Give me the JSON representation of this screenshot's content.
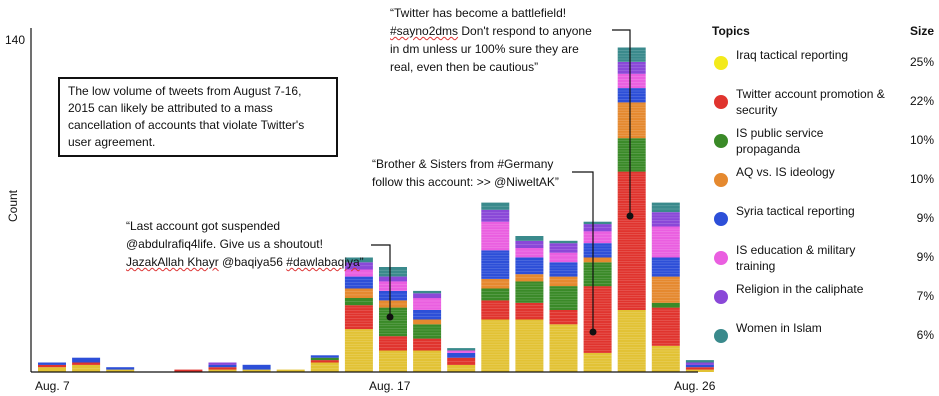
{
  "chart_data": {
    "type": "bar",
    "stacked": true,
    "ylabel": "Count",
    "ymax_tick": 140,
    "ylim": [
      0,
      140
    ],
    "x_tick_labels": [
      "Aug. 7",
      "Aug. 17",
      "Aug. 26"
    ],
    "series": [
      {
        "name": "Iraq tactical reporting",
        "color": "#e2c234",
        "values": [
          2,
          3,
          1,
          0,
          0,
          1,
          1,
          1,
          4,
          18,
          9,
          9,
          3,
          22,
          22,
          20,
          8,
          26,
          11,
          1
        ]
      },
      {
        "name": "Twitter account promotion & security",
        "color": "#e0342e",
        "values": [
          1,
          1,
          0,
          0,
          1,
          1,
          0,
          0,
          1,
          10,
          6,
          5,
          3,
          8,
          7,
          6,
          28,
          58,
          16,
          1
        ]
      },
      {
        "name": "IS public service propaganda",
        "color": "#3a8a28",
        "values": [
          0,
          0,
          0,
          0,
          0,
          0,
          0,
          0,
          1,
          3,
          12,
          6,
          0,
          5,
          9,
          10,
          10,
          14,
          2,
          0
        ]
      },
      {
        "name": "AQ vs. IS ideology",
        "color": "#e5892f",
        "values": [
          0,
          0,
          0,
          0,
          0,
          0,
          0,
          0,
          0,
          4,
          3,
          2,
          0,
          4,
          3,
          4,
          2,
          15,
          11,
          0
        ]
      },
      {
        "name": "Syria tactical reporting",
        "color": "#2d4fd8",
        "values": [
          1,
          2,
          1,
          0,
          0,
          1,
          2,
          0,
          1,
          5,
          4,
          4,
          2,
          12,
          7,
          6,
          6,
          6,
          8,
          1
        ]
      },
      {
        "name": "IS education & military training",
        "color": "#ea5fe0",
        "values": [
          0,
          0,
          0,
          0,
          0,
          0,
          0,
          0,
          0,
          3,
          4,
          5,
          1,
          12,
          4,
          4,
          5,
          6,
          13,
          0
        ]
      },
      {
        "name": "Religion in the caliphate",
        "color": "#8a48d8",
        "values": [
          0,
          0,
          0,
          0,
          0,
          1,
          0,
          0,
          0,
          3,
          2,
          2,
          0,
          5,
          3,
          4,
          3,
          5,
          6,
          1
        ]
      },
      {
        "name": "Women in Islam",
        "color": "#3a8a8c",
        "values": [
          0,
          0,
          0,
          0,
          0,
          0,
          0,
          0,
          0,
          2,
          4,
          1,
          1,
          3,
          2,
          1,
          1,
          6,
          4,
          1
        ]
      }
    ]
  },
  "legend": {
    "topics_header": "Topics",
    "size_header": "Size",
    "items": [
      {
        "label": "Iraq tactical reporting",
        "size": "25%",
        "color": "#f3ea1b"
      },
      {
        "label": "Twitter account promotion & security",
        "size": "22%",
        "color": "#e0342e"
      },
      {
        "label": "IS public service propaganda",
        "size": "10%",
        "color": "#3a8a28"
      },
      {
        "label": "AQ vs. IS ideology",
        "size": "10%",
        "color": "#e5892f"
      },
      {
        "label": "Syria tactical reporting",
        "size": "9%",
        "color": "#2d4fd8"
      },
      {
        "label": "IS education & military training",
        "size": "9%",
        "color": "#ea5fe0"
      },
      {
        "label": "Religion in the caliphate",
        "size": "7%",
        "color": "#8a48d8"
      },
      {
        "label": "Women in Islam",
        "size": "6%",
        "color": "#3a8a8c"
      }
    ]
  },
  "annotations": {
    "box_note": "The low volume of tweets from August 7-16, 2015 can likely be attributed to a mass cancellation of accounts that violate Twitter's user agreement.",
    "quote_suspended": {
      "line1": "“Last account got suspended",
      "line2": "@abdulrafiq4life. Give us a shoutout!",
      "line3a": "JazakAllah Khayr",
      "line3b": " @baqiya56 ",
      "line3c": "#dawlabaqiya",
      "line3d": "”"
    },
    "quote_germany": {
      "line1": "“Brother & Sisters from #Germany",
      "line2": "follow this account: >> @NiweltAK”"
    },
    "quote_battlefield": {
      "line1": "“Twitter has become a battlefield!",
      "line2a": "#sayno2dms",
      "line2b": " Don't respond to anyone",
      "line3": "in dm unless ur 100% sure they are",
      "line4": "real, even then be cautious”"
    }
  }
}
